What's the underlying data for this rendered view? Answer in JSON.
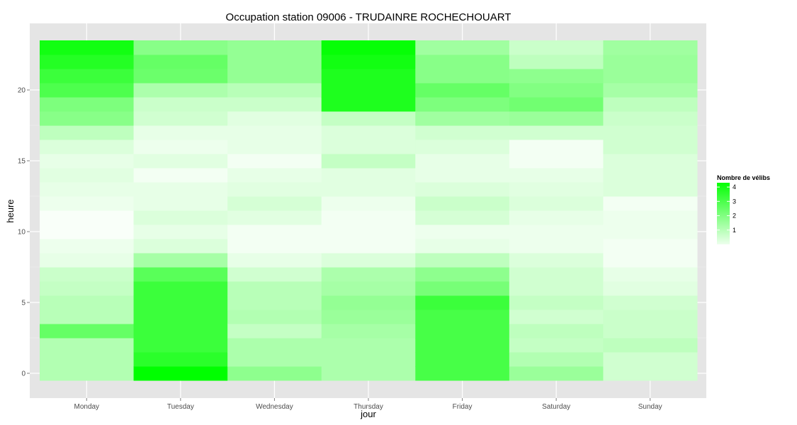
{
  "chart_data": {
    "type": "heatmap",
    "title": "Occupation station 09006 - TRUDAINRE ROCHECHOUART",
    "xlabel": "jour",
    "ylabel": "heure",
    "x_categories": [
      "Monday",
      "Tuesday",
      "Wednesday",
      "Thursday",
      "Friday",
      "Saturday",
      "Sunday"
    ],
    "y_values": [
      0,
      1,
      2,
      3,
      4,
      5,
      6,
      7,
      8,
      9,
      10,
      11,
      12,
      13,
      14,
      15,
      16,
      17,
      18,
      19,
      20,
      21,
      22,
      23
    ],
    "y_ticks": [
      0,
      5,
      10,
      15,
      20
    ],
    "ylim": [
      -0.5,
      23.5
    ],
    "z_matrix_by_day": {
      "Monday": [
        1.3,
        1.3,
        1.3,
        2.6,
        1.2,
        1.2,
        1.0,
        0.9,
        0.4,
        0.3,
        0.1,
        0.1,
        0.3,
        0.4,
        0.5,
        0.4,
        0.6,
        1.1,
        2.0,
        2.2,
        3.0,
        3.3,
        3.7,
        4.0
      ],
      "Tuesday": [
        4.3,
        3.6,
        3.3,
        3.3,
        3.3,
        3.3,
        3.3,
        2.8,
        1.5,
        0.6,
        0.4,
        0.6,
        0.4,
        0.4,
        0.2,
        0.5,
        0.3,
        0.4,
        0.8,
        0.9,
        1.4,
        2.5,
        2.6,
        2.0
      ],
      "Wednesday": [
        1.9,
        1.4,
        1.4,
        1.0,
        1.3,
        1.2,
        1.2,
        0.8,
        0.4,
        0.2,
        0.2,
        0.5,
        0.7,
        0.5,
        0.4,
        0.2,
        0.4,
        0.4,
        0.5,
        0.9,
        1.2,
        1.8,
        1.8,
        1.8
      ],
      "Thursday": [
        1.4,
        1.4,
        1.4,
        1.5,
        1.7,
        1.8,
        1.5,
        1.4,
        0.6,
        0.2,
        0.2,
        0.2,
        0.3,
        0.5,
        0.5,
        1.0,
        0.6,
        0.6,
        1.0,
        3.8,
        3.8,
        3.8,
        4.0,
        4.2
      ],
      "Friday": [
        3.1,
        3.1,
        3.1,
        3.1,
        3.1,
        3.3,
        2.3,
        1.9,
        1.1,
        0.4,
        0.3,
        0.7,
        0.9,
        0.6,
        0.4,
        0.4,
        0.6,
        0.8,
        1.6,
        2.2,
        2.6,
        2.0,
        2.0,
        1.6
      ],
      "Saturday": [
        1.7,
        1.3,
        1.0,
        1.1,
        0.8,
        1.0,
        0.8,
        0.8,
        0.6,
        0.3,
        0.3,
        0.4,
        0.6,
        0.5,
        0.4,
        0.2,
        0.2,
        0.8,
        1.7,
        2.4,
        2.1,
        1.9,
        1.1,
        0.9
      ],
      "Sunday": [
        0.8,
        0.8,
        1.1,
        0.9,
        0.9,
        0.8,
        0.5,
        0.4,
        0.2,
        0.2,
        0.3,
        0.3,
        0.2,
        0.6,
        0.6,
        0.6,
        0.8,
        0.8,
        0.9,
        1.1,
        1.5,
        1.7,
        1.7,
        1.6
      ]
    },
    "color_scale": {
      "low": "#ffffff",
      "high": "#00ff00",
      "min": 0,
      "max": 4.3
    },
    "legend": {
      "title": "Nombre de vélibs",
      "ticks": [
        1,
        2,
        3,
        4
      ],
      "position": "right"
    },
    "grid": true,
    "panel_background": "#e5e5e5",
    "grid_color": "#ffffff"
  }
}
